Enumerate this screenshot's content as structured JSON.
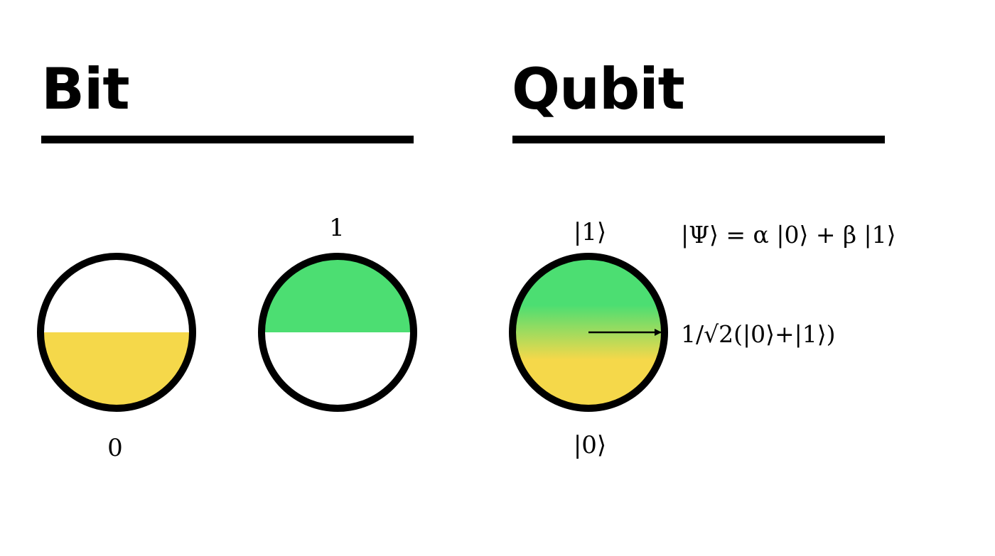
{
  "bit": {
    "heading": "Bit",
    "state_zero_label": "0",
    "state_one_label": "1"
  },
  "qubit": {
    "heading": "Qubit",
    "top_label": "|1⟩",
    "bottom_label": "|0⟩",
    "equation": "|Ψ⟩ = α |0⟩ + β |1⟩",
    "vector_label": "1/√2(|0⟩+|1⟩)"
  },
  "colors": {
    "zero_state": "#f5d84a",
    "one_state": "#4cde72",
    "outline": "#000000"
  }
}
